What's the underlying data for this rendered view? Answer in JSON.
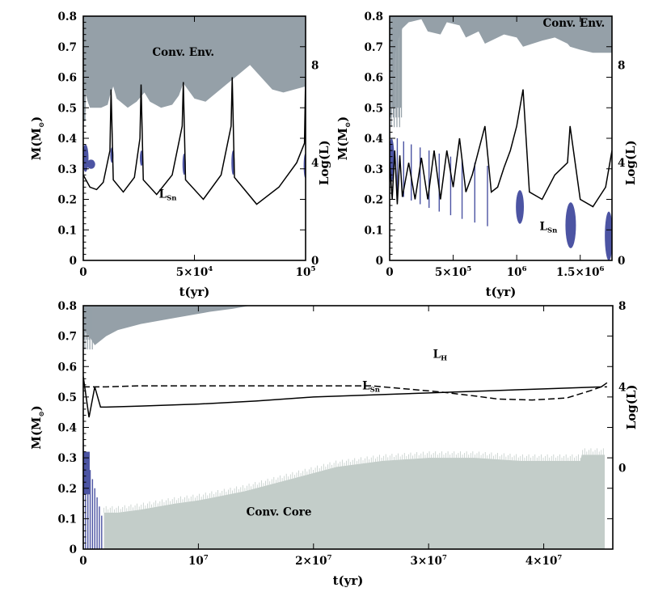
{
  "chart_data": [
    {
      "type": "area",
      "panel": "top-left",
      "title": "",
      "xlabel": "t(yr)",
      "ylabel": "M(M⊙)",
      "y2label": "Log(L)",
      "xlim": [
        0,
        100000
      ],
      "ylim": [
        0,
        0.8
      ],
      "y2lim": [
        0,
        10
      ],
      "x_ticks": [
        "0",
        "5×10⁴",
        "10⁵"
      ],
      "x_tick_values": [
        0,
        50000,
        100000
      ],
      "y_ticks": [
        "0",
        "0.1",
        "0.2",
        "0.3",
        "0.4",
        "0.5",
        "0.6",
        "0.7",
        "0.8"
      ],
      "y2_ticks": [
        "0",
        "4",
        "8"
      ],
      "y2_tick_values": [
        0,
        4,
        8
      ],
      "annotations": [
        {
          "text": "Conv. Env.",
          "x": 45000,
          "y": 0.67
        },
        {
          "text": "L",
          "sub": "Sn",
          "x": 38000,
          "y": 0.205
        }
      ],
      "series": [
        {
          "name": "convective envelope base",
          "color": "#95a0a8",
          "x": [
            0,
            500,
            1000,
            2000,
            3000,
            4000,
            5000,
            8000,
            11000,
            12000,
            13500,
            15000,
            20000,
            24000,
            27500,
            30000,
            35000,
            40000,
            43000,
            45000,
            50000,
            55000,
            60000,
            65000,
            70000,
            75000,
            80000,
            85000,
            90000,
            95000,
            100000
          ],
          "values": [
            0.52,
            0.6,
            0.55,
            0.52,
            0.5,
            0.5,
            0.5,
            0.5,
            0.51,
            0.54,
            0.57,
            0.53,
            0.5,
            0.52,
            0.55,
            0.52,
            0.5,
            0.51,
            0.54,
            0.58,
            0.53,
            0.52,
            0.55,
            0.58,
            0.61,
            0.64,
            0.6,
            0.56,
            0.55,
            0.56,
            0.57
          ]
        },
        {
          "name": "L_Sn (Log L)",
          "color": "#000000",
          "x": [
            0,
            3000,
            6000,
            9000,
            12000,
            12500,
            13500,
            18000,
            23000,
            25500,
            26000,
            27000,
            33000,
            40000,
            44500,
            45000,
            46000,
            54000,
            62000,
            66500,
            67000,
            68000,
            78000,
            88000,
            96000,
            99500,
            100000
          ],
          "values": [
            3.5,
            3.0,
            2.9,
            3.2,
            4.5,
            7.0,
            3.3,
            2.8,
            3.4,
            5.0,
            7.2,
            3.3,
            2.7,
            3.5,
            5.5,
            7.3,
            3.3,
            2.5,
            3.5,
            5.5,
            7.5,
            3.4,
            2.3,
            3.0,
            4.0,
            4.8,
            7.5
          ]
        }
      ],
      "flash_regions": [
        {
          "x": [
            0,
            2000
          ],
          "m": [
            0.29,
            0.38
          ]
        },
        {
          "x": [
            2000,
            5000
          ],
          "m": [
            0.3,
            0.33
          ]
        },
        {
          "x": [
            12500,
            13000
          ],
          "m": [
            0.32,
            0.37
          ]
        },
        {
          "x": [
            25800,
            26200
          ],
          "m": [
            0.31,
            0.36
          ]
        },
        {
          "x": [
            45000,
            45400
          ],
          "m": [
            0.28,
            0.35
          ]
        },
        {
          "x": [
            67000,
            67400
          ],
          "m": [
            0.28,
            0.36
          ]
        },
        {
          "x": [
            99500,
            100000
          ],
          "m": [
            0.27,
            0.35
          ]
        }
      ]
    },
    {
      "type": "area",
      "panel": "top-right",
      "title": "",
      "xlabel": "t(yr)",
      "ylabel": "M(M⊙)",
      "y2label": "Log(L)",
      "xlim": [
        0,
        1750000
      ],
      "ylim": [
        0,
        0.8
      ],
      "y2lim": [
        0,
        10
      ],
      "x_ticks": [
        "0",
        "5×10⁵",
        "10⁶",
        "1.5×10⁶"
      ],
      "x_tick_values": [
        0,
        500000,
        1000000,
        1500000
      ],
      "y_ticks": [
        "0",
        "0.1",
        "0.2",
        "0.3",
        "0.4",
        "0.5",
        "0.6",
        "0.7",
        "0.8"
      ],
      "y2_ticks": [
        "0",
        "4",
        "8"
      ],
      "y2_tick_values": [
        0,
        4,
        8
      ],
      "annotations": [
        {
          "text": "Conv. Env.",
          "x": 1450000,
          "y": 0.765
        },
        {
          "text": "L",
          "sub": "Sn",
          "x": 1250000,
          "y": 0.1
        }
      ],
      "series": [
        {
          "name": "convective envelope base",
          "color": "#95a0a8",
          "x": [
            0,
            50000,
            100000,
            150000,
            250000,
            300000,
            400000,
            450000,
            550000,
            600000,
            700000,
            750000,
            900000,
            1000000,
            1050000,
            1200000,
            1300000,
            1400000,
            1420000,
            1500000,
            1600000,
            1700000,
            1750000
          ],
          "values": [
            0.5,
            0.7,
            0.76,
            0.78,
            0.79,
            0.75,
            0.74,
            0.78,
            0.77,
            0.73,
            0.75,
            0.71,
            0.74,
            0.73,
            0.7,
            0.72,
            0.73,
            0.71,
            0.7,
            0.69,
            0.68,
            0.68,
            0.68
          ]
        },
        {
          "name": "L_Sn (Log L)",
          "color": "#000000",
          "x": [
            0,
            20000,
            40000,
            60000,
            80000,
            100000,
            150000,
            200000,
            250000,
            300000,
            350000,
            400000,
            450000,
            500000,
            550000,
            600000,
            650000,
            700000,
            750000,
            800000,
            850000,
            900000,
            950000,
            1000000,
            1050000,
            1100000,
            1200000,
            1300000,
            1400000,
            1420000,
            1500000,
            1600000,
            1700000,
            1750000
          ],
          "values": [
            4.0,
            2.5,
            4.5,
            2.3,
            4.3,
            2.6,
            4.0,
            2.5,
            4.2,
            2.5,
            4.5,
            2.5,
            4.5,
            3.0,
            5.0,
            2.8,
            3.5,
            4.5,
            5.5,
            2.8,
            3.0,
            3.8,
            4.5,
            5.5,
            7.0,
            2.8,
            2.5,
            3.5,
            4.0,
            5.5,
            2.5,
            2.2,
            3.0,
            4.5
          ]
        }
      ],
      "flash_regions": [
        {
          "x": [
            0,
            30000
          ],
          "m": [
            0.26,
            0.4
          ]
        },
        {
          "x": [
            1000000,
            1050000
          ],
          "m": [
            0.12,
            0.23
          ]
        },
        {
          "x": [
            1390000,
            1460000
          ],
          "m": [
            0.04,
            0.19
          ]
        },
        {
          "x": [
            1700000,
            1750000
          ],
          "m": [
            0.0,
            0.16
          ]
        }
      ]
    },
    {
      "type": "area",
      "panel": "bottom",
      "title": "",
      "xlabel": "t(yr)",
      "ylabel": "M(M⊙)",
      "y2label": "Log(L)",
      "xlim": [
        0,
        46000000
      ],
      "ylim": [
        0,
        0.8
      ],
      "y2lim": [
        -4,
        8
      ],
      "x_ticks": [
        "0",
        "10⁷",
        "2×10⁷",
        "3×10⁷",
        "4×10⁷"
      ],
      "x_tick_values": [
        0,
        10000000,
        20000000,
        30000000,
        40000000
      ],
      "y_ticks": [
        "0",
        "0.1",
        "0.2",
        "0.3",
        "0.4",
        "0.5",
        "0.6",
        "0.7",
        "0.8"
      ],
      "y2_ticks": [
        "0",
        "4",
        "8"
      ],
      "y2_tick_values": [
        0,
        4,
        8
      ],
      "annotations": [
        {
          "text": "Conv. Core",
          "x": 17000000,
          "y": 0.11
        },
        {
          "text": "L",
          "sub": "H",
          "x": 31000000,
          "y": 0.628
        },
        {
          "text": "L",
          "sub": "Sn",
          "x": 25000000,
          "y": 0.525
        }
      ],
      "series": [
        {
          "name": "convective envelope base",
          "color": "#95a0a8",
          "x": [
            0,
            500000,
            1000000,
            2000000,
            3000000,
            5000000,
            8000000,
            11000000,
            13000000,
            14500000
          ],
          "values": [
            0.72,
            0.7,
            0.67,
            0.7,
            0.72,
            0.74,
            0.76,
            0.78,
            0.79,
            0.8
          ]
        },
        {
          "name": "convective core",
          "color": "#c3cdc9",
          "x": [
            1800000,
            3000000,
            5000000,
            8000000,
            10000000,
            14000000,
            18000000,
            22000000,
            26000000,
            30000000,
            34000000,
            38000000,
            42000000,
            43200000,
            43300000,
            45300000
          ],
          "values": [
            0.12,
            0.12,
            0.13,
            0.15,
            0.16,
            0.19,
            0.23,
            0.27,
            0.29,
            0.3,
            0.3,
            0.29,
            0.29,
            0.29,
            0.31,
            0.31
          ]
        },
        {
          "name": "L_H (Log L)",
          "color": "#000000",
          "dash": true,
          "x": [
            0,
            1000000,
            2000000,
            5000000,
            10000000,
            15000000,
            20000000,
            25000000,
            28000000,
            31000000,
            34000000,
            36000000,
            39000000,
            42000000,
            44000000,
            45000000,
            45500000
          ],
          "values": [
            4.0,
            4.0,
            4.0,
            4.05,
            4.05,
            4.05,
            4.05,
            4.05,
            3.9,
            3.75,
            3.55,
            3.4,
            3.35,
            3.45,
            3.8,
            4.0,
            4.0
          ]
        },
        {
          "name": "L_Sn (Log L)",
          "color": "#000000",
          "x": [
            0,
            500000,
            1000000,
            1500000,
            2000000,
            5000000,
            10000000,
            15000000,
            20000000,
            25000000,
            30000000,
            35000000,
            40000000,
            45000000,
            45500000
          ],
          "values": [
            4.5,
            2.5,
            4.0,
            3.0,
            3.0,
            3.05,
            3.15,
            3.3,
            3.5,
            3.6,
            3.7,
            3.8,
            3.9,
            4.0,
            4.2
          ]
        }
      ],
      "flash_regions": [
        {
          "x": [
            0,
            1600000
          ],
          "m": [
            0.0,
            0.35
          ]
        }
      ]
    }
  ]
}
